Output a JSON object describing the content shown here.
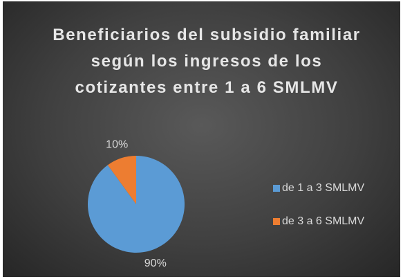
{
  "chart_data": {
    "type": "pie",
    "title": "Beneficiarios del subsidio familiar según los ingresos de los cotizantes entre 1 a 6 SMLMV",
    "categories": [
      "de 1 a 3 SMLMV",
      "de 3 a 6 SMLMV"
    ],
    "values": [
      90,
      10
    ],
    "value_labels": [
      "90%",
      "10%"
    ],
    "colors": [
      "#5b9bd5",
      "#ed7d31"
    ],
    "legend": "right"
  }
}
